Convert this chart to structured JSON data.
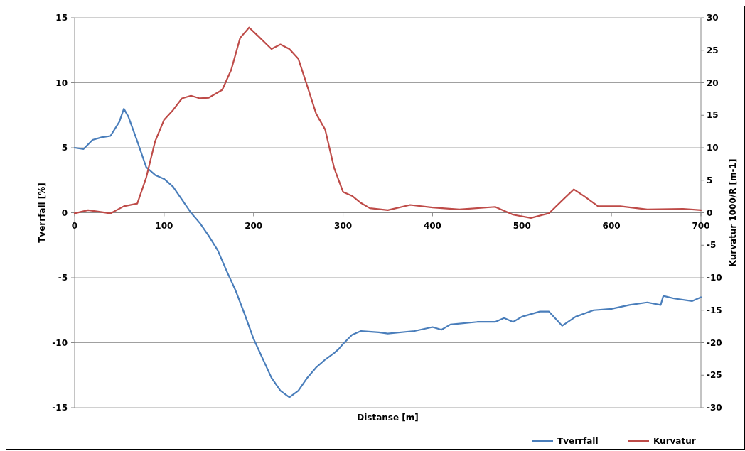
{
  "chart_data": {
    "type": "line",
    "xlabel": "Distanse [m]",
    "ylabel": "Tverrfall [%]",
    "y2label": "Kurvatur 1000/R [m-1]",
    "xlim": [
      0,
      700
    ],
    "xticks": [
      0,
      100,
      200,
      300,
      400,
      500,
      600,
      700
    ],
    "ylim": [
      -15,
      15
    ],
    "yticks": [
      -15,
      -10,
      -5,
      0,
      5,
      10,
      15
    ],
    "y2lim": [
      -30,
      30
    ],
    "y2ticks": [
      -30,
      -25,
      -20,
      -15,
      -10,
      -5,
      0,
      5,
      10,
      15,
      20,
      25,
      30
    ],
    "grid": "y",
    "legend": "bottom right",
    "marker": "none",
    "line_style": "solid",
    "series": [
      {
        "name": "Tverrfall",
        "color": "#4a7ebb",
        "x": [
          0,
          10,
          20,
          30,
          40,
          50,
          55,
          60,
          70,
          80,
          90,
          100,
          110,
          120,
          130,
          140,
          150,
          160,
          170,
          180,
          190,
          200,
          210,
          220,
          230,
          240,
          250,
          260,
          270,
          280,
          290,
          295,
          300,
          310,
          320,
          340,
          350,
          380,
          400,
          410,
          420,
          450,
          470,
          480,
          490,
          500,
          520,
          530,
          545,
          560,
          580,
          600,
          620,
          640,
          655,
          658,
          670,
          690,
          700
        ],
        "values": [
          5.0,
          4.9,
          5.6,
          5.8,
          5.9,
          7.0,
          8.0,
          7.4,
          5.5,
          3.5,
          2.9,
          2.6,
          2.0,
          1.0,
          0,
          -0.8,
          -1.8,
          -2.9,
          -4.5,
          -6.0,
          -7.8,
          -9.7,
          -11.2,
          -12.7,
          -13.7,
          -14.2,
          -13.7,
          -12.7,
          -11.9,
          -11.3,
          -10.8,
          -10.5,
          -10.1,
          -9.4,
          -9.1,
          -9.2,
          -9.3,
          -9.1,
          -8.8,
          -9.0,
          -8.6,
          -8.4,
          -8.4,
          -8.1,
          -8.4,
          -8.0,
          -7.6,
          -7.6,
          -8.7,
          -8.0,
          -7.5,
          -7.4,
          -7.1,
          -6.9,
          -7.1,
          -6.4,
          -6.6,
          -6.8,
          -6.5
        ]
      },
      {
        "name": "Kurvatur",
        "color": "#be4b48",
        "axis": "y2",
        "x": [
          0,
          15,
          40,
          55,
          70,
          80,
          90,
          100,
          110,
          120,
          130,
          140,
          150,
          165,
          175,
          185,
          195,
          205,
          220,
          230,
          240,
          250,
          260,
          270,
          280,
          290,
          300,
          310,
          320,
          330,
          350,
          375,
          400,
          430,
          470,
          490,
          510,
          530,
          545,
          558,
          570,
          585,
          610,
          640,
          680,
          700
        ],
        "values": [
          -0.1,
          0.4,
          -0.1,
          1.0,
          1.4,
          5.4,
          11.0,
          14.3,
          15.8,
          17.6,
          18.0,
          17.6,
          17.7,
          18.9,
          22.0,
          26.9,
          28.5,
          27.2,
          25.2,
          25.9,
          25.2,
          23.7,
          19.5,
          15.2,
          12.8,
          6.9,
          3.2,
          2.6,
          1.5,
          0.7,
          0.4,
          1.2,
          0.8,
          0.5,
          0.9,
          -0.3,
          -0.8,
          -0.1,
          1.9,
          3.6,
          2.5,
          1.0,
          1.0,
          0.5,
          0.6,
          0.4
        ]
      }
    ]
  }
}
